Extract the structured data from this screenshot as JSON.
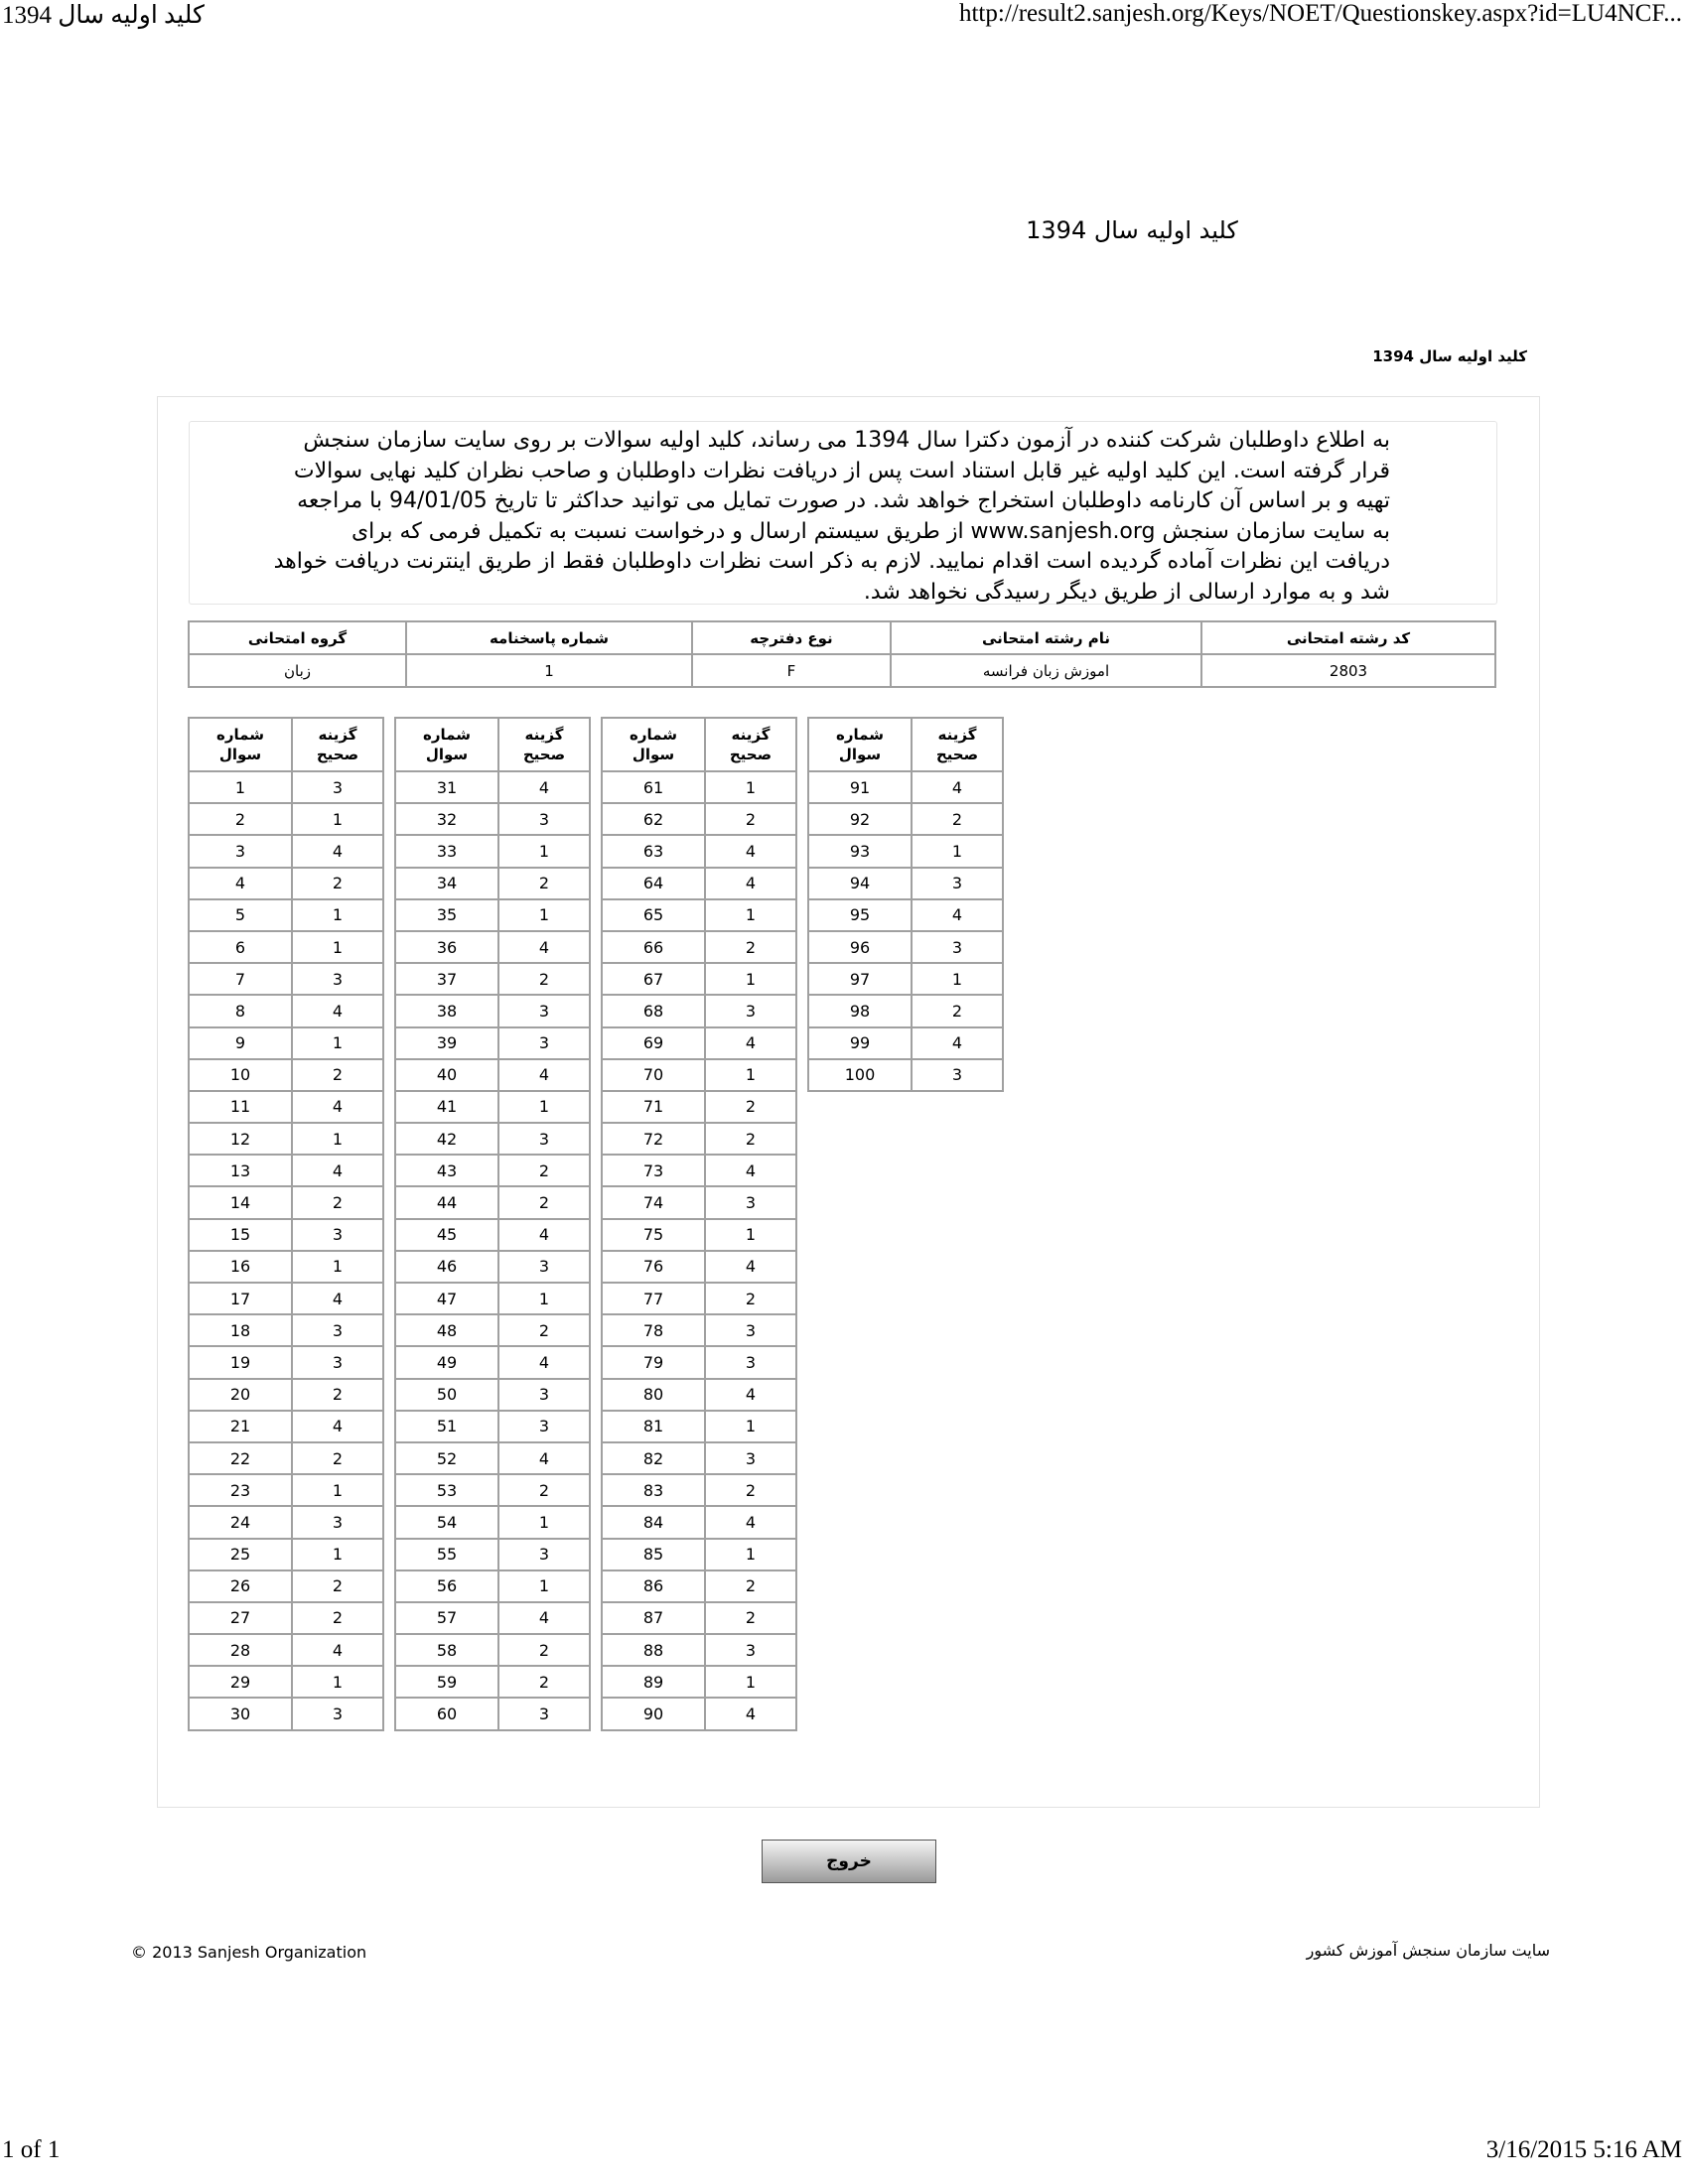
{
  "print_header": {
    "title": "کلید اولیه سال 1394",
    "url": "http://result2.sanjesh.org/Keys/NOET/Questionskey.aspx?id=LU4NCF..."
  },
  "page": {
    "title": "کلید اولیه سال 1394",
    "subtitle": "کلید اولیه سال 1394"
  },
  "notice": {
    "lines": [
      "به اطلاع داوطلبان شرکت کننده در آزمون دکترا سال 1394 می رساند، کلید اولیه سوالات بر روی سایت سازمان سنجش",
      "قرار گرفته است. این کلید اولیه غیر قابل استناد است پس از دریافت نظرات داوطلبان و صاحب نظران کلید نهایی سوالات",
      "تهیه و بر اساس آن کارنامه داوطلبان استخراج خواهد شد. در صورت تمایل می توانید حداکثر تا تاریخ 94/01/05 با مراجعه",
      "به سایت سازمان سنجش www.sanjesh.org از طریق  سیستم ارسال و درخواست نسبت به تکمیل فرمی که برای",
      "دریافت این نظرات آماده گردیده است اقدام نمایید. لازم به ذکر است نظرات داوطلبان فقط از طریق اینترنت دریافت خواهد",
      "شد و به موارد ارسالی از طریق دیگر رسیدگی نخواهد شد."
    ]
  },
  "info_table": {
    "headers": [
      "کد رشته امتحانی",
      "نام رشته امتحانی",
      "نوع دفترچه",
      "شماره پاسخنامه",
      "گروه امتحانی"
    ],
    "values": [
      "2803",
      "اموزش زبان فرانسه",
      "F",
      "1",
      "زبان"
    ]
  },
  "answer_key": {
    "header_question": [
      "شماره",
      "سوال"
    ],
    "header_answer": [
      "گزینه",
      "صحیح"
    ],
    "answers": [
      3,
      1,
      4,
      2,
      1,
      1,
      3,
      4,
      1,
      2,
      4,
      1,
      4,
      2,
      3,
      1,
      4,
      3,
      3,
      2,
      4,
      2,
      1,
      3,
      1,
      2,
      2,
      4,
      1,
      3,
      4,
      3,
      1,
      2,
      1,
      4,
      2,
      3,
      3,
      4,
      1,
      3,
      2,
      2,
      4,
      3,
      1,
      2,
      4,
      3,
      3,
      4,
      2,
      1,
      3,
      1,
      4,
      2,
      2,
      3,
      1,
      2,
      4,
      4,
      1,
      2,
      1,
      3,
      4,
      1,
      2,
      2,
      4,
      3,
      1,
      4,
      2,
      3,
      3,
      4,
      1,
      3,
      2,
      4,
      1,
      2,
      2,
      3,
      1,
      4,
      4,
      2,
      1,
      3,
      4,
      3,
      1,
      2,
      4,
      3
    ]
  },
  "exit_button": "خروج",
  "footer": {
    "copyright": "© 2013 Sanjesh Organization",
    "site_link": "سایت سازمان سنجش آموزش کشور"
  },
  "print_footer": {
    "page": "1 of 1",
    "datetime": "3/16/2015 5:16 AM"
  }
}
